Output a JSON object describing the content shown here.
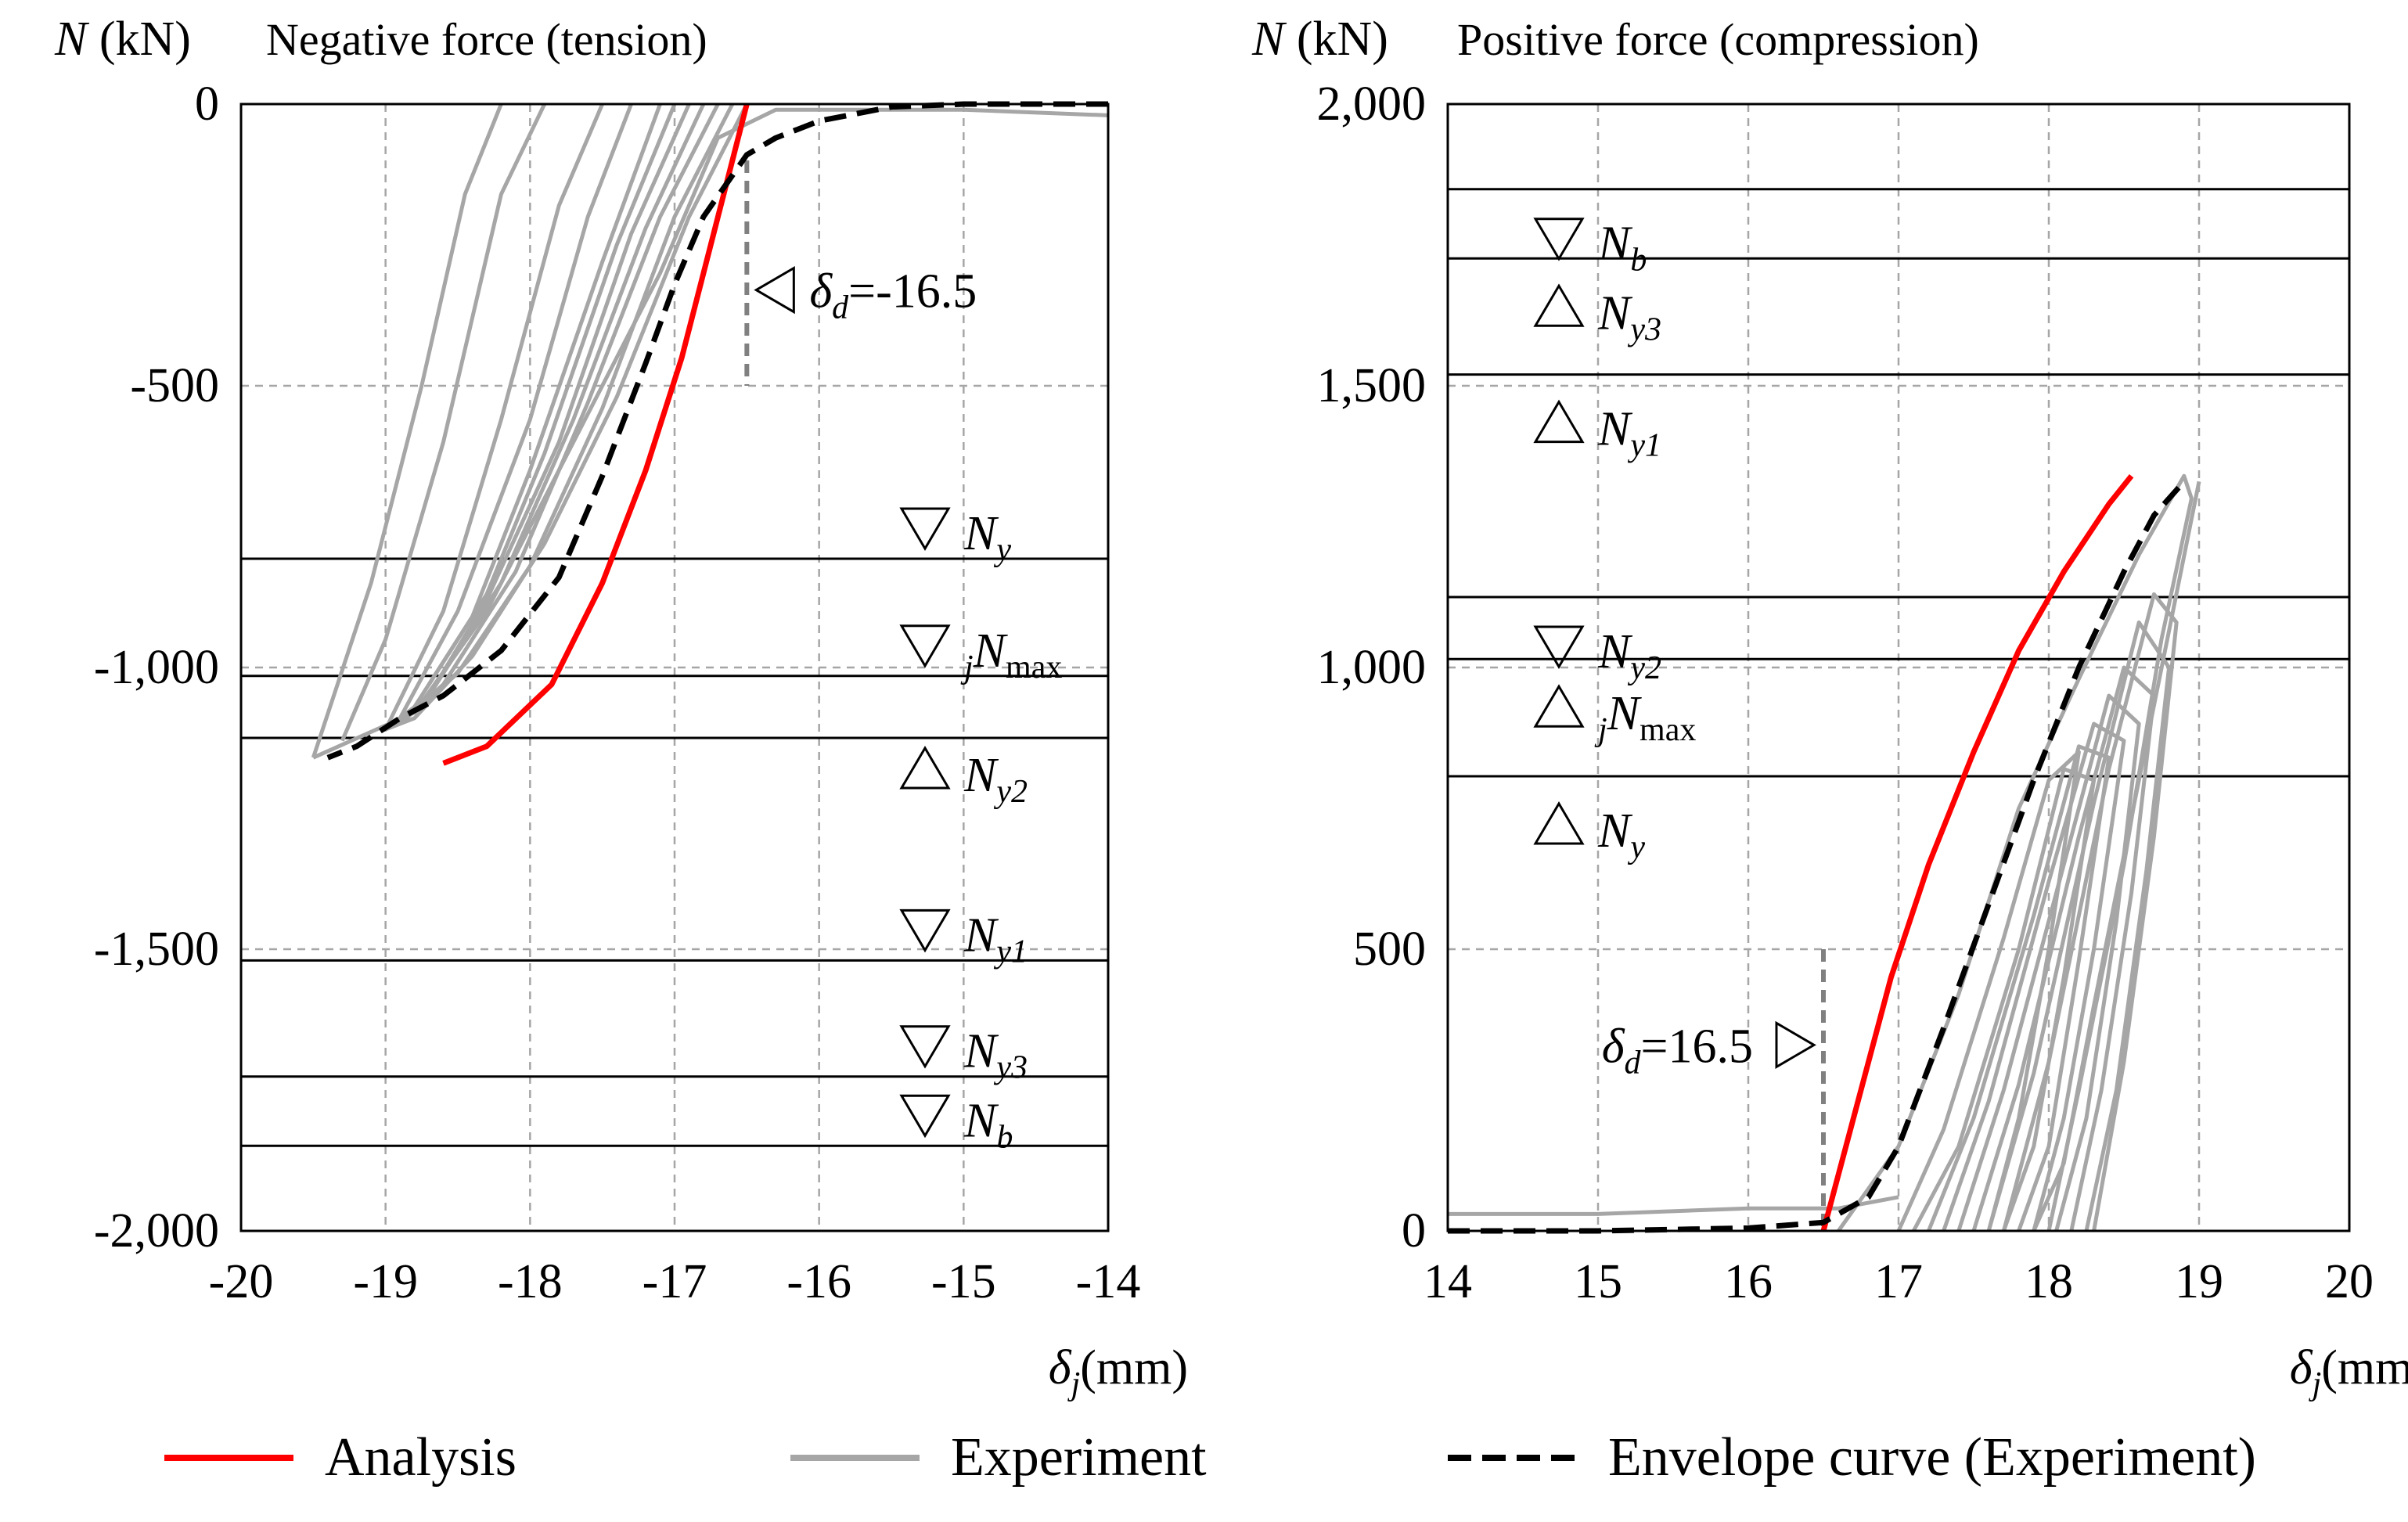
{
  "chart_data": [
    {
      "type": "line",
      "title": "Negative force (tension)",
      "ylabel": {
        "symbol": "N",
        "unit": "(kN)"
      },
      "xlabel": {
        "symbol": "δ",
        "sub": "j",
        "unit": "(mm)"
      },
      "xlim": [
        -20,
        -14
      ],
      "ylim": [
        -2000,
        0
      ],
      "xticks": [
        -20,
        -19,
        -18,
        -17,
        -16,
        -15,
        -14
      ],
      "xtick_labels": [
        "-20",
        "-19",
        "-18",
        "-17",
        "-16",
        "-15",
        "-14"
      ],
      "yticks": [
        -2000,
        -1500,
        -1000,
        -500,
        0
      ],
      "ytick_labels": [
        "-2,000",
        "-1,500",
        "-1,000",
        "-500",
        "0"
      ],
      "grid": true,
      "levels": [
        {
          "name": "N_y",
          "main": "N",
          "pre": "",
          "sub": "y",
          "value": -807,
          "marker": "down"
        },
        {
          "name": "jN_max",
          "main": "N",
          "pre": "j",
          "sub": "max",
          "value": -1015,
          "marker": "down"
        },
        {
          "name": "N_y2",
          "main": "N",
          "pre": "",
          "sub": "y2",
          "value": -1125,
          "marker": "up"
        },
        {
          "name": "N_y1",
          "main": "N",
          "pre": "",
          "sub": "y1",
          "value": -1520,
          "marker": "down"
        },
        {
          "name": "N_y3",
          "main": "N",
          "pre": "",
          "sub": "y3",
          "value": -1726,
          "marker": "down"
        },
        {
          "name": "N_b",
          "main": "N",
          "pre": "",
          "sub": "b",
          "value": -1849,
          "marker": "down"
        }
      ],
      "delta_d": {
        "x": -16.5,
        "label_main": "δ",
        "label_sub": "d",
        "label_value": "=-16.5",
        "marker": "left"
      },
      "series": [
        {
          "name": "Analysis",
          "color": "#ff0000",
          "points": [
            [
              -16.5,
              0
            ],
            [
              -16.6,
              -100
            ],
            [
              -16.75,
              -250
            ],
            [
              -16.95,
              -450
            ],
            [
              -17.2,
              -650
            ],
            [
              -17.5,
              -850
            ],
            [
              -17.85,
              -1030
            ],
            [
              -18.3,
              -1140
            ],
            [
              -18.6,
              -1170
            ]
          ]
        },
        {
          "name": "Envelope curve (Experiment)",
          "color": "#000000",
          "points": [
            [
              -14,
              0
            ],
            [
              -15,
              0
            ],
            [
              -15.5,
              -5
            ],
            [
              -16,
              -30
            ],
            [
              -16.3,
              -60
            ],
            [
              -16.5,
              -90
            ],
            [
              -16.8,
              -200
            ],
            [
              -17.0,
              -320
            ],
            [
              -17.2,
              -460
            ],
            [
              -17.5,
              -660
            ],
            [
              -17.8,
              -840
            ],
            [
              -18.2,
              -970
            ],
            [
              -18.6,
              -1050
            ],
            [
              -18.9,
              -1090
            ],
            [
              -19.2,
              -1140
            ],
            [
              -19.4,
              -1160
            ]
          ]
        }
      ],
      "experiment_color": "#a6a6a6",
      "experiment_loops": [
        [
          [
            -16.5,
            0
          ],
          [
            -16.9,
            -200
          ],
          [
            -17.4,
            -520
          ],
          [
            -17.9,
            -780
          ],
          [
            -18.4,
            -980
          ],
          [
            -18.8,
            -1090
          ],
          [
            -19.0,
            -1110
          ]
        ],
        [
          [
            -16.6,
            0
          ],
          [
            -17.0,
            -200
          ],
          [
            -17.5,
            -540
          ],
          [
            -18.0,
            -820
          ],
          [
            -18.5,
            -1010
          ],
          [
            -18.9,
            -1100
          ]
        ],
        [
          [
            -16.7,
            0
          ],
          [
            -17.1,
            -200
          ],
          [
            -17.6,
            -530
          ],
          [
            -18.1,
            -830
          ],
          [
            -18.6,
            -1030
          ],
          [
            -18.9,
            -1100
          ]
        ],
        [
          [
            -16.8,
            0
          ],
          [
            -17.2,
            -220
          ],
          [
            -17.7,
            -560
          ],
          [
            -18.2,
            -850
          ],
          [
            -18.7,
            -1050
          ],
          [
            -19.0,
            -1110
          ]
        ],
        [
          [
            -16.9,
            0
          ],
          [
            -17.3,
            -230
          ],
          [
            -17.8,
            -600
          ],
          [
            -18.3,
            -880
          ],
          [
            -18.7,
            -1050
          ]
        ],
        [
          [
            -17.0,
            0
          ],
          [
            -17.4,
            -250
          ],
          [
            -17.9,
            -620
          ],
          [
            -18.3,
            -870
          ],
          [
            -18.7,
            -1030
          ]
        ],
        [
          [
            -17.1,
            0
          ],
          [
            -17.5,
            -280
          ],
          [
            -18.0,
            -650
          ],
          [
            -18.4,
            -910
          ],
          [
            -18.8,
            -1070
          ]
        ],
        [
          [
            -17.3,
            0
          ],
          [
            -17.6,
            -200
          ],
          [
            -18.0,
            -560
          ],
          [
            -18.5,
            -900
          ],
          [
            -18.9,
            -1090
          ]
        ],
        [
          [
            -17.5,
            0
          ],
          [
            -17.8,
            -180
          ],
          [
            -18.2,
            -560
          ],
          [
            -18.6,
            -900
          ],
          [
            -19.0,
            -1110
          ]
        ],
        [
          [
            -17.9,
            0
          ],
          [
            -18.2,
            -160
          ],
          [
            -18.6,
            -600
          ],
          [
            -19.0,
            -950
          ],
          [
            -19.3,
            -1130
          ]
        ],
        [
          [
            -18.2,
            0
          ],
          [
            -18.45,
            -160
          ],
          [
            -18.75,
            -500
          ],
          [
            -19.1,
            -850
          ],
          [
            -19.5,
            -1160
          ]
        ],
        [
          [
            -19.5,
            -1160
          ],
          [
            -18.8,
            -1080
          ],
          [
            -18.3,
            -900
          ],
          [
            -17.7,
            -600
          ],
          [
            -17.1,
            -300
          ],
          [
            -16.7,
            -60
          ],
          [
            -16.3,
            -10
          ],
          [
            -15.0,
            -10
          ],
          [
            -14.0,
            -20
          ]
        ]
      ]
    },
    {
      "type": "line",
      "title": "Positive force (compression)",
      "ylabel": {
        "symbol": "N",
        "unit": "(kN)"
      },
      "xlabel": {
        "symbol": "δ",
        "sub": "j",
        "unit": "(mm)"
      },
      "xlim": [
        14,
        20
      ],
      "ylim": [
        0,
        2000
      ],
      "xticks": [
        14,
        15,
        16,
        17,
        18,
        19,
        20
      ],
      "xtick_labels": [
        "14",
        "15",
        "16",
        "17",
        "18",
        "19",
        "20"
      ],
      "yticks": [
        0,
        500,
        1000,
        1500,
        2000
      ],
      "ytick_labels": [
        "0",
        "500",
        "1,000",
        "1,500",
        "2,000"
      ],
      "grid": true,
      "levels": [
        {
          "name": "N_b",
          "main": "N",
          "pre": "",
          "sub": "b",
          "value": 1849,
          "marker": "down"
        },
        {
          "name": "N_y3",
          "main": "N",
          "pre": "",
          "sub": "y3",
          "value": 1726,
          "marker": "up"
        },
        {
          "name": "N_y1",
          "main": "N",
          "pre": "",
          "sub": "y1",
          "value": 1520,
          "marker": "up"
        },
        {
          "name": "N_y2",
          "main": "N",
          "pre": "",
          "sub": "y2",
          "value": 1125,
          "marker": "down"
        },
        {
          "name": "jN_max",
          "main": "N",
          "pre": "j",
          "sub": "max",
          "value": 1015,
          "marker": "up"
        },
        {
          "name": "N_y",
          "main": "N",
          "pre": "",
          "sub": "y",
          "value": 807,
          "marker": "up"
        }
      ],
      "delta_d": {
        "x": 16.5,
        "label_main": "δ",
        "label_sub": "d",
        "label_value": "=16.5",
        "marker": "right"
      },
      "series": [
        {
          "name": "Analysis",
          "color": "#ff0000",
          "points": [
            [
              16.5,
              0
            ],
            [
              16.7,
              200
            ],
            [
              16.95,
              450
            ],
            [
              17.2,
              650
            ],
            [
              17.5,
              850
            ],
            [
              17.8,
              1030
            ],
            [
              18.1,
              1170
            ],
            [
              18.4,
              1290
            ],
            [
              18.55,
              1340
            ]
          ]
        },
        {
          "name": "Envelope curve (Experiment)",
          "color": "#000000",
          "points": [
            [
              14,
              0
            ],
            [
              15,
              0
            ],
            [
              16.0,
              5
            ],
            [
              16.5,
              15
            ],
            [
              16.8,
              60
            ],
            [
              17.0,
              150
            ],
            [
              17.3,
              360
            ],
            [
              17.6,
              580
            ],
            [
              17.9,
              800
            ],
            [
              18.2,
              1000
            ],
            [
              18.5,
              1170
            ],
            [
              18.7,
              1270
            ],
            [
              18.9,
              1330
            ]
          ]
        }
      ],
      "experiment_color": "#a6a6a6",
      "experiment_loops": [
        [
          [
            16.6,
            0
          ],
          [
            17.0,
            150
          ],
          [
            17.4,
            420
          ],
          [
            17.8,
            750
          ],
          [
            18.2,
            980
          ],
          [
            18.6,
            1200
          ],
          [
            18.9,
            1340
          ],
          [
            18.95,
            1300
          ],
          [
            18.75,
            1050
          ],
          [
            18.5,
            650
          ],
          [
            18.2,
            250
          ],
          [
            18.0,
            0
          ]
        ],
        [
          [
            17.0,
            0
          ],
          [
            17.3,
            180
          ],
          [
            17.7,
            520
          ],
          [
            18.0,
            800
          ],
          [
            18.2,
            850
          ],
          [
            18.0,
            500
          ],
          [
            17.8,
            200
          ],
          [
            17.6,
            0
          ]
        ],
        [
          [
            17.1,
            0
          ],
          [
            17.4,
            150
          ],
          [
            17.8,
            500
          ],
          [
            18.1,
            820
          ],
          [
            18.3,
            800
          ],
          [
            18.1,
            450
          ],
          [
            17.9,
            150
          ],
          [
            17.7,
            0
          ]
        ],
        [
          [
            17.2,
            0
          ],
          [
            17.5,
            200
          ],
          [
            17.9,
            560
          ],
          [
            18.2,
            860
          ],
          [
            18.4,
            840
          ],
          [
            18.2,
            480
          ],
          [
            18.0,
            150
          ],
          [
            17.8,
            0
          ]
        ],
        [
          [
            17.3,
            0
          ],
          [
            17.6,
            230
          ],
          [
            18.0,
            620
          ],
          [
            18.3,
            900
          ],
          [
            18.5,
            870
          ],
          [
            18.3,
            500
          ],
          [
            18.1,
            200
          ],
          [
            17.9,
            0
          ]
        ],
        [
          [
            17.4,
            0
          ],
          [
            17.7,
            250
          ],
          [
            18.1,
            650
          ],
          [
            18.4,
            950
          ],
          [
            18.6,
            900
          ],
          [
            18.45,
            550
          ],
          [
            18.25,
            200
          ],
          [
            18.05,
            0
          ]
        ],
        [
          [
            17.5,
            0
          ],
          [
            17.8,
            260
          ],
          [
            18.2,
            700
          ],
          [
            18.5,
            1000
          ],
          [
            18.7,
            950
          ],
          [
            18.55,
            600
          ],
          [
            18.35,
            250
          ],
          [
            18.15,
            0
          ]
        ],
        [
          [
            17.6,
            0
          ],
          [
            17.9,
            280
          ],
          [
            18.3,
            760
          ],
          [
            18.6,
            1080
          ],
          [
            18.8,
            1000
          ],
          [
            18.65,
            640
          ],
          [
            18.45,
            250
          ],
          [
            18.25,
            0
          ]
        ],
        [
          [
            17.7,
            0
          ],
          [
            18.0,
            300
          ],
          [
            18.4,
            820
          ],
          [
            18.7,
            1130
          ],
          [
            18.85,
            1080
          ],
          [
            18.7,
            700
          ],
          [
            18.5,
            300
          ],
          [
            18.3,
            0
          ]
        ],
        [
          [
            19.0,
            1330
          ],
          [
            18.6,
            800
          ],
          [
            18.3,
            400
          ],
          [
            18.1,
            120
          ],
          [
            17.9,
            0
          ]
        ],
        [
          [
            14.0,
            30
          ],
          [
            15.0,
            30
          ],
          [
            16.0,
            40
          ],
          [
            16.6,
            40
          ],
          [
            17.0,
            60
          ]
        ]
      ]
    }
  ],
  "legend": [
    {
      "label": "Analysis",
      "color": "#ff0000",
      "style": "solid"
    },
    {
      "label": "Experiment",
      "color": "#a6a6a6",
      "style": "solid"
    },
    {
      "label": "Envelope curve (Experiment)",
      "color": "#000000",
      "style": "dashed"
    }
  ]
}
